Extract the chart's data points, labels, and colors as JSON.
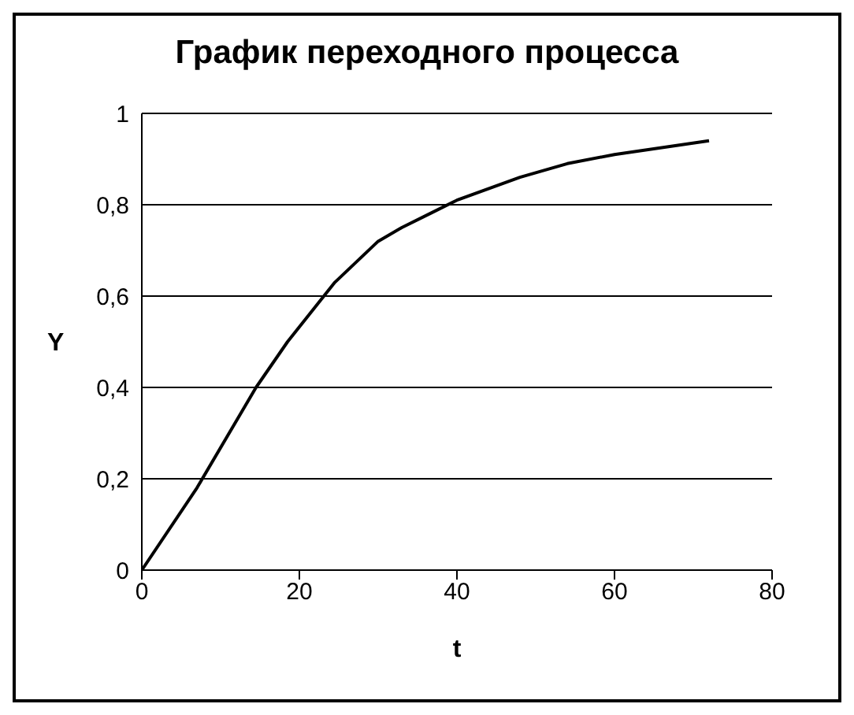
{
  "chart_data": {
    "type": "line",
    "title": "График переходного процесса",
    "xlabel": "t",
    "ylabel": "Y",
    "x": [
      0,
      7,
      14.5,
      18.5,
      24.5,
      30,
      33,
      36.5,
      40,
      48,
      54,
      60,
      72
    ],
    "series": [
      {
        "color": "#000000",
        "values": [
          0,
          0.18,
          0.4,
          0.5,
          0.63,
          0.72,
          0.75,
          0.78,
          0.81,
          0.86,
          0.89,
          0.91,
          0.94
        ]
      }
    ],
    "xlim": [
      0,
      80
    ],
    "xticks": [
      0,
      20,
      40,
      60,
      80
    ],
    "ylim": [
      0,
      1
    ],
    "yticks": [
      0,
      {
        "value": 0.2,
        "label": "0,2"
      },
      {
        "value": 0.4,
        "label": "0,4"
      },
      {
        "value": 0.6,
        "label": "0,6"
      },
      {
        "value": 0.8,
        "label": "0,8"
      },
      1
    ],
    "grid": "y",
    "legend": false,
    "marker": "none",
    "line_style": "solid"
  }
}
